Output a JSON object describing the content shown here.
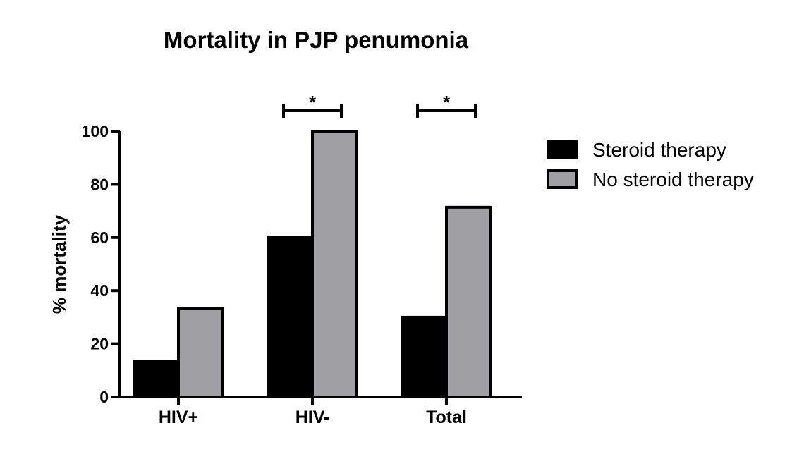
{
  "chart_data": {
    "type": "bar",
    "title": "Mortality in PJP penumonia",
    "xlabel": "",
    "ylabel": "% mortality",
    "categories": [
      "HIV+",
      "HIV-",
      "Total"
    ],
    "series": [
      {
        "name": "Steroid therapy",
        "values": [
          13.3,
          60,
          30
        ],
        "color": "#000000"
      },
      {
        "name": "No steroid therapy",
        "values": [
          33.3,
          100,
          71.4
        ],
        "color": "#a0a0a4"
      }
    ],
    "ylim": [
      0,
      100
    ],
    "yticks": [
      "0",
      "20",
      "40",
      "60",
      "80",
      "100"
    ],
    "grid": false,
    "legend_position": "right",
    "significance": [
      {
        "category": "HIV-",
        "label": "*"
      },
      {
        "category": "Total",
        "label": "*"
      }
    ]
  }
}
